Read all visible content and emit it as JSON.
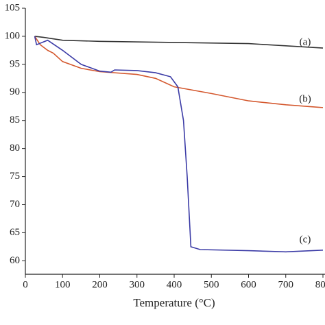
{
  "chart_data": {
    "type": "line",
    "xlabel": "Temperature (°C)",
    "xlim": [
      0,
      800
    ],
    "xticks": [
      0,
      100,
      200,
      300,
      400,
      500,
      600,
      700,
      800
    ],
    "ylim": [
      57.6,
      105
    ],
    "yticks": [
      60,
      65,
      70,
      75,
      80,
      85,
      90,
      95,
      100,
      105
    ],
    "annotations": [
      "(a)",
      "(b)",
      "(c)"
    ],
    "series": [
      {
        "name": "(a)",
        "color": "#333333",
        "x": [
          25,
          50,
          100,
          200,
          400,
          600,
          700,
          800
        ],
        "values": [
          100,
          99.8,
          99.3,
          99.1,
          98.9,
          98.7,
          98.3,
          97.9
        ]
      },
      {
        "name": "(b)",
        "color": "#d4582e",
        "x": [
          25,
          40,
          60,
          75,
          100,
          150,
          200,
          300,
          350,
          400,
          500,
          600,
          700,
          800
        ],
        "values": [
          100,
          98.5,
          97.5,
          97,
          95.5,
          94.3,
          93.7,
          93.2,
          92.5,
          91,
          89.8,
          88.5,
          87.8,
          87.3
        ]
      },
      {
        "name": "(c)",
        "color": "#3b3ba6",
        "x": [
          25,
          30,
          60,
          100,
          150,
          200,
          230,
          240,
          300,
          350,
          390,
          410,
          425,
          435,
          445,
          470,
          600,
          700,
          800
        ],
        "values": [
          100,
          98.5,
          99.3,
          97.5,
          95,
          93.8,
          93.6,
          94,
          93.9,
          93.5,
          92.8,
          91,
          85,
          75,
          62.5,
          62,
          61.8,
          61.6,
          61.9
        ]
      }
    ]
  }
}
